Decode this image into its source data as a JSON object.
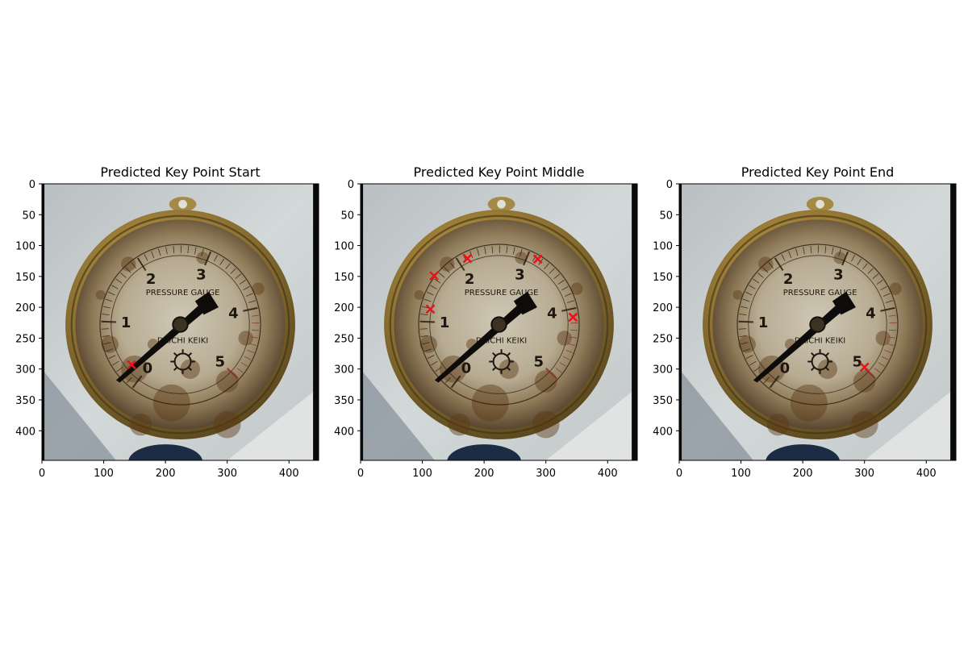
{
  "chart_data": [
    {
      "type": "scatter",
      "title": "Predicted Key Point Start",
      "xlim": [
        0,
        448
      ],
      "ylim": [
        448,
        0
      ],
      "x_ticks": [
        0,
        100,
        200,
        300,
        400
      ],
      "y_ticks": [
        0,
        50,
        100,
        150,
        200,
        250,
        300,
        350,
        400
      ],
      "marker": "x",
      "marker_color": "#e8141b",
      "background": "pressure-gauge-photo",
      "gauge_labels": [
        "PRESSURE GAUGE",
        "DAICHI KEIKI"
      ],
      "dial_numbers": [
        "0",
        "1",
        "2",
        "3",
        "4",
        "5"
      ],
      "points": [
        {
          "x": 145,
          "y": 293
        }
      ]
    },
    {
      "type": "scatter",
      "title": "Predicted Key Point Middle",
      "xlim": [
        0,
        448
      ],
      "ylim": [
        448,
        0
      ],
      "x_ticks": [
        0,
        100,
        200,
        300,
        400
      ],
      "y_ticks": [
        0,
        50,
        100,
        150,
        200,
        250,
        300,
        350,
        400
      ],
      "marker": "x",
      "marker_color": "#e8141b",
      "background": "pressure-gauge-photo",
      "gauge_labels": [
        "PRESSURE GAUGE",
        "DAICHI KEIKI"
      ],
      "dial_numbers": [
        "0",
        "1",
        "2",
        "3",
        "4",
        "5"
      ],
      "points": [
        {
          "x": 119,
          "y": 149
        },
        {
          "x": 173,
          "y": 121
        },
        {
          "x": 287,
          "y": 122
        },
        {
          "x": 113,
          "y": 203
        },
        {
          "x": 344,
          "y": 216
        }
      ]
    },
    {
      "type": "scatter",
      "title": "Predicted Key Point End",
      "xlim": [
        0,
        448
      ],
      "ylim": [
        448,
        0
      ],
      "x_ticks": [
        0,
        100,
        200,
        300,
        400
      ],
      "y_ticks": [
        0,
        50,
        100,
        150,
        200,
        250,
        300,
        350,
        400
      ],
      "marker": "x",
      "marker_color": "#e8141b",
      "background": "pressure-gauge-photo",
      "gauge_labels": [
        "PRESSURE GAUGE",
        "DAICHI KEIKI"
      ],
      "dial_numbers": [
        "0",
        "1",
        "2",
        "3",
        "4",
        "5"
      ],
      "points": [
        {
          "x": 300,
          "y": 297
        }
      ]
    }
  ]
}
